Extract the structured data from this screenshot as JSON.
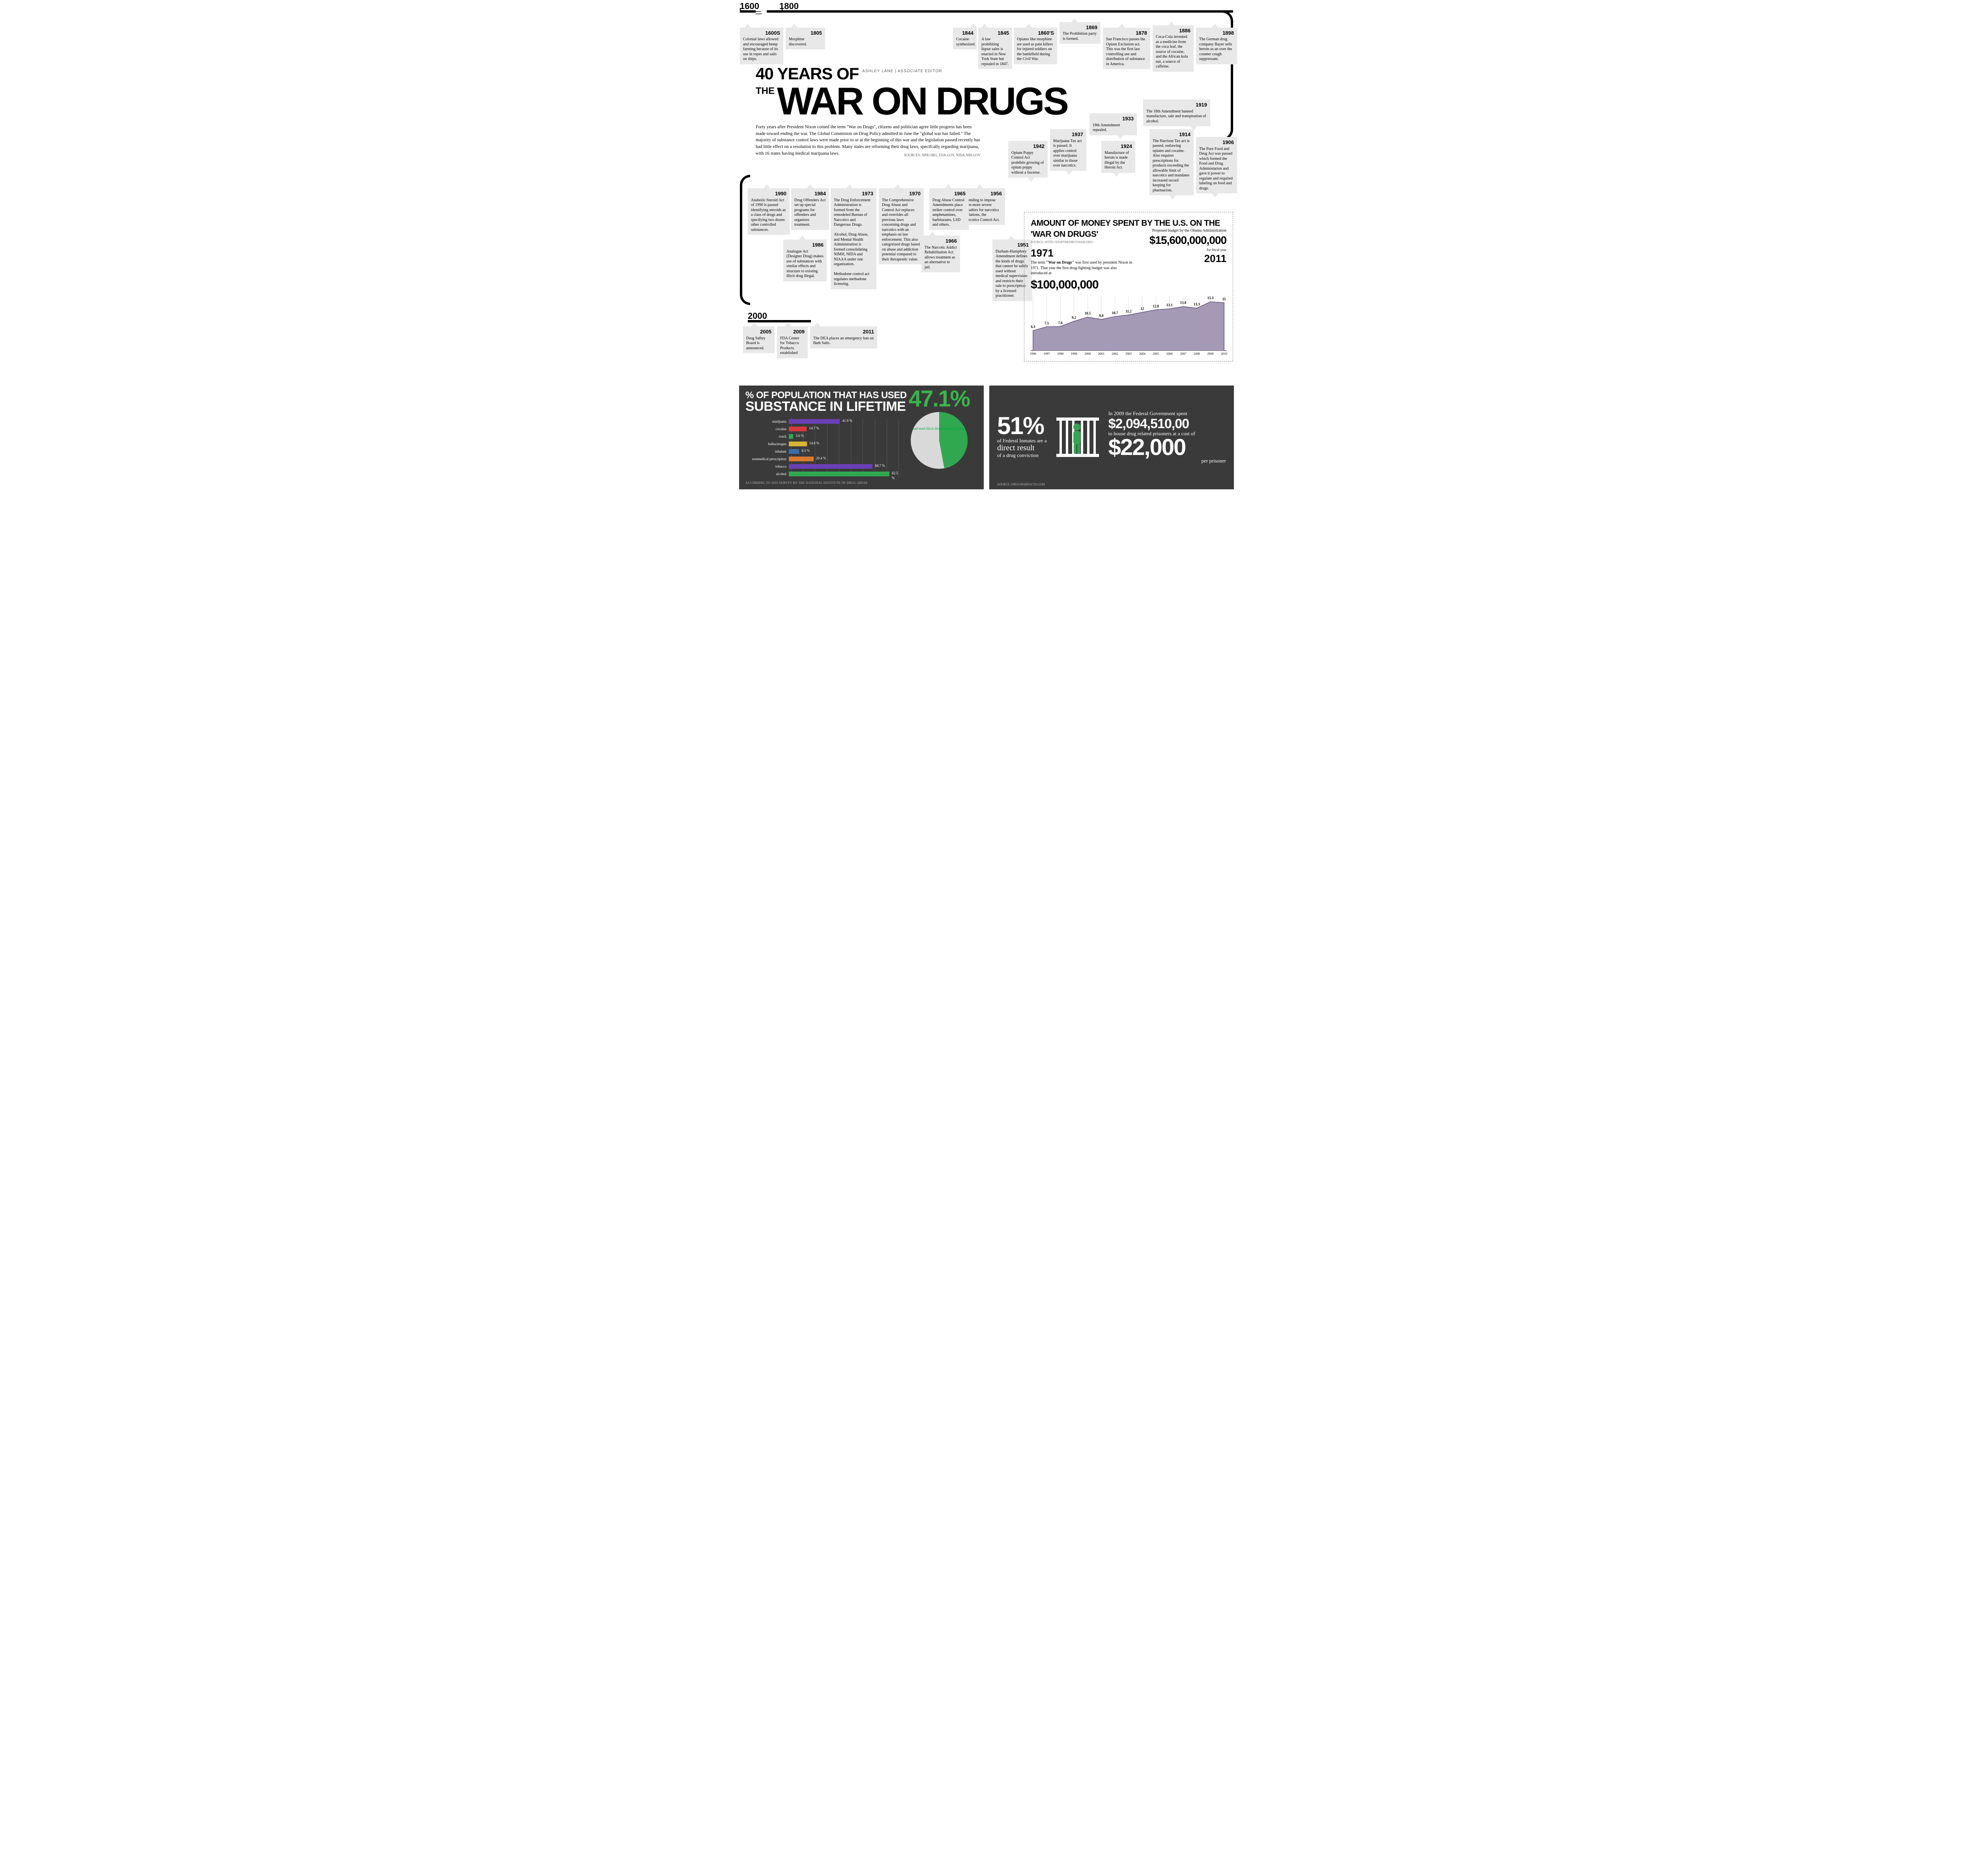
{
  "title": {
    "line1": "40 YEARS OF",
    "the": "THE",
    "line2": "WAR ON DRUGS",
    "byline": "ASHLEY LANE | ASSOCIATE EDITOR"
  },
  "intro": {
    "text": "Forty years after President Nixon coined the term \"War on Drugs\", citizens and politician agree little progress has been made toward ending the war. The Global Commision on Drug Policy admitted in June the \"global war has failed.\" The majority of substance control laws were made prior to or at the beginning of this war and the legislation passed recently has had little effect on a resolution to this problem. Many states are reforming their drug laws, specifcally regarding marijuana, with 16 states having medical marijuana laws.",
    "sources": "SOURCES: NPR.ORG, FDA.GOV, NIDA.NIH.GOV"
  },
  "timeline_labels": {
    "l1600": "1600",
    "l1800": "1800",
    "l1900": "1900",
    "l2000": "2000"
  },
  "events_top": [
    {
      "year": "1600S",
      "text": "Colonial laws allowed and encouraged hemp farming because of its use in ropes and sails on ships."
    },
    {
      "year": "1805",
      "text": "Morphine discovered."
    },
    {
      "year": "1844",
      "text": "Cocaine synthesized."
    },
    {
      "year": "1845",
      "text": "A law prohibiting liqour sales is enacted in New York State but repealed in 1847."
    },
    {
      "year": "1860'S",
      "text": "Opiates like morphine are used as pain killers for injured soldiers on the battlefield during the Civil War."
    },
    {
      "year": "1869",
      "text": "The Prohibition party is formed."
    },
    {
      "year": "1878",
      "text": "San Francisco passes the Opium Exclusion act. This was the first law controlling use and distribution of substance in America."
    },
    {
      "year": "1886",
      "text": "Coca-Cola invented as a medicine from the coca leaf, the source of cocaine, and the African kola nut, a source of caffeine."
    },
    {
      "year": "1898",
      "text": "The German drug company Bayer sells heroin as an over the counter cough suppressant."
    }
  ],
  "events_mid": [
    {
      "year": "1906",
      "text": "The Pure Food and Drug Act was passed which formed the Food and Drug Administarion and gave it power to regulate and required labeling on food and drugs."
    },
    {
      "year": "1914",
      "text": "The Harrison Tax act is passed, outlawing opiates and cocaine. Also requires prescriptions for products exceeding the allowable limit of narcotics and mandates increased record keeping for pharmacists."
    },
    {
      "year": "1919",
      "text": "The 18th Amendment banned manufacture, sale and transpiration of alcohol."
    },
    {
      "year": "1924",
      "text": "Manufacture of heroin is made illegal by the Heroin Act."
    },
    {
      "year": "1933",
      "text": "18th Amendment repealed."
    },
    {
      "year": "1937",
      "text": "Marijuana Tax act is passed. It applies control over marijuana similar to those over narcotics."
    },
    {
      "year": "1942",
      "text": "Opium Poppy Control Act prohibits growing of opium poppy without a liscense."
    }
  ],
  "events_mid2": [
    {
      "year": "1951",
      "text": "Durham-Humphrey Amendment defines the kinds of drugs that cannot be safely used without medical supervision and restricts their sale to prescription by a licensed practitioner."
    },
    {
      "year": "1956",
      "text": "Intending to impose even more severe penalties for narcotics violations, the Narcotics Control Act."
    },
    {
      "year": "1965",
      "text": "Drug Abuse Control Amendments place striker control over amphetamines, barbiturates, LSD and others."
    },
    {
      "year": "1966",
      "text": "The Narcotic Addict Rehabilitation Act allows treatment as an alternative to jail."
    },
    {
      "year": "1970",
      "text": "The Comprehensive Drug Abuse and Control Act replaces and overrides all previous laws concerning drugs and narcotics with an emphasis on law enforcement. This also categorized drugs based on abuse and addiction potential compared to their therapeutic value."
    },
    {
      "year": "1973",
      "text": "The Drug Enforcement Administration is formed from the remodeled Bureau of Narcotics and Dangerous Drugs.\nAlcohol, Drug Abuse, and Mental Health Administration is formed consolidating NIMH, NIDA and NIAAA under one organization.\nMethadone control act regulates methadone licensing."
    },
    {
      "year": "1984",
      "text": "Drug Offenders Act set up special programs for offenders and organizes treatment."
    },
    {
      "year": "1986",
      "text": "Analogue Act (Designer Drug) makes use of substances with similar effects and structure to existing illicit drug illegal."
    },
    {
      "year": "1990",
      "text": "Anabolic Steroid Act of 1990 is passed identifying steroids as a class of drugs and specifying two dozen other controlled substances."
    }
  ],
  "events_bot": [
    {
      "year": "2005",
      "text": "Drug Saftey Board is announced."
    },
    {
      "year": "2009",
      "text": "FDA Center for Tobacco Products established"
    },
    {
      "year": "2011",
      "text": "The DEA places an emergency ban on Bath Salts."
    }
  ],
  "spending": {
    "title": "AMOUNT OF MONEY SPENT BY THE U.S. ON THE 'WAR ON DRUGS'",
    "source": "SOURCE: HTTP://STOPTHEDRUGWAR.ORG/",
    "year71": "1971",
    "blurb_a": "The term ",
    "blurb_b": "\"War on Drugs\"",
    "blurb_c": " was first used by president Nixon in 1971. That year the first drug-fighting budget was also introduced at",
    "big100": "$100,000,000",
    "budget_label": "Proposed budget by the Obama Administration",
    "budget_amt": "$15,600,000,000",
    "budget_fy": "for fiscal year",
    "budget_year": "2011",
    "series": {
      "years": [
        "1996",
        "1997",
        "1998",
        "1999",
        "2000",
        "2001",
        "2002",
        "2003",
        "2004",
        "2005",
        "2006",
        "2007",
        "2008",
        "2009",
        "2010"
      ],
      "values": [
        6.3,
        7.5,
        7.6,
        9.2,
        10.5,
        9.8,
        10.7,
        11.2,
        12,
        12.8,
        13.1,
        13.8,
        13.3,
        15.3,
        15
      ],
      "ymax": 16,
      "fill": "#a59ab5",
      "stroke": "#5b4e77",
      "grid": "#bbbbbb"
    }
  },
  "substance": {
    "heading1": "% OF POPULATION THAT HAS USED",
    "heading2": "SUBSTANCE IN LIFETIME",
    "bignum": "47.1%",
    "subtext": "had used illicit drugs in their lifetime",
    "footnote": "ACCORDING TO 2010 SURVEY BY THE NATIONAL INSTITUTE OF DRUG ABUSE",
    "xmax": 90,
    "bars": [
      {
        "label": "marijuana",
        "pct": 41.9,
        "color": "#6a3fb5"
      },
      {
        "label": "cocaine",
        "pct": 14.7,
        "color": "#d43a3a"
      },
      {
        "label": "crack",
        "pct": 3.6,
        "color": "#2fa84f"
      },
      {
        "label": "hallucinogen",
        "pct": 14.8,
        "color": "#d8b62e"
      },
      {
        "label": "inhalant",
        "pct": 8.5,
        "color": "#3a6ea8"
      },
      {
        "label": "nonmedical perscription",
        "pct": 20.4,
        "color": "#d87a2e"
      },
      {
        "label": "tobacco",
        "pct": 68.7,
        "color": "#6a3fb5"
      },
      {
        "label": "alcohol",
        "pct": 82.5,
        "color": "#2fa84f"
      }
    ],
    "pie": {
      "value": 47.1,
      "fill": "#2fa84f",
      "rest": "#d9d9d9"
    }
  },
  "inmates": {
    "pct": "51%",
    "line1": "of Federal Inmates are a",
    "line2a": "direct result",
    "line2b": "of a drug conviction",
    "source": "SOURCE: DRUGWARFACTS.COM"
  },
  "cost": {
    "l1": "In 2009 the Federal Government spent",
    "amt1": "$2,094,510,00",
    "l2": "to house drug related prisoners at a cost of",
    "amt2": "$22,000",
    "l3": "per prisoner"
  },
  "colors": {
    "dark_bg": "#3a3a3a",
    "jail_person": "#2fa84f"
  }
}
